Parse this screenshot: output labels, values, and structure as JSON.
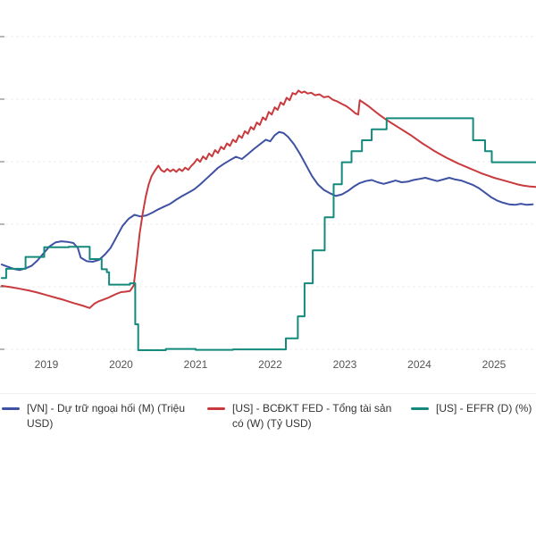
{
  "page": {
    "background": "#ffffff"
  },
  "chart_data": {
    "type": "line",
    "title": "",
    "xlabel": "",
    "ylabel": "",
    "grid": true,
    "legend_position": "bottom",
    "x_axis": {
      "tick_labels": [
        "2019",
        "2020",
        "2021",
        "2022",
        "2023",
        "2024",
        "2025"
      ],
      "tick_values": [
        2019,
        2020,
        2021,
        2022,
        2023,
        2024,
        2025
      ],
      "range": [
        2018.4,
        2025.56
      ]
    },
    "y_axis": {
      "labels_visible": false
    },
    "series": [
      {
        "name": "[VN] - Dự trữ ngoại hối (M) (Triệu USD)",
        "unit": "Triệu USD",
        "color": "#3e51a3",
        "step": false,
        "axis_range": [
          30000,
          140000
        ],
        "points": [
          [
            2018.4,
            62000
          ],
          [
            2018.48,
            61200
          ],
          [
            2018.56,
            60400
          ],
          [
            2018.64,
            60000
          ],
          [
            2018.72,
            60600
          ],
          [
            2018.8,
            61500
          ],
          [
            2018.88,
            63500
          ],
          [
            2018.96,
            66000
          ],
          [
            2019.04,
            68500
          ],
          [
            2019.12,
            70000
          ],
          [
            2019.2,
            70400
          ],
          [
            2019.28,
            70200
          ],
          [
            2019.36,
            69800
          ],
          [
            2019.42,
            68000
          ],
          [
            2019.46,
            64500
          ],
          [
            2019.54,
            63200
          ],
          [
            2019.62,
            63000
          ],
          [
            2019.7,
            63600
          ],
          [
            2019.78,
            65500
          ],
          [
            2019.86,
            68000
          ],
          [
            2019.94,
            72000
          ],
          [
            2020.02,
            76000
          ],
          [
            2020.1,
            78500
          ],
          [
            2020.18,
            80000
          ],
          [
            2020.26,
            79400
          ],
          [
            2020.34,
            79800
          ],
          [
            2020.42,
            80800
          ],
          [
            2020.5,
            82000
          ],
          [
            2020.58,
            83000
          ],
          [
            2020.66,
            84000
          ],
          [
            2020.74,
            85500
          ],
          [
            2020.82,
            86800
          ],
          [
            2020.9,
            88000
          ],
          [
            2020.98,
            89200
          ],
          [
            2021.06,
            91000
          ],
          [
            2021.14,
            93000
          ],
          [
            2021.22,
            95000
          ],
          [
            2021.3,
            97000
          ],
          [
            2021.38,
            98500
          ],
          [
            2021.46,
            99800
          ],
          [
            2021.54,
            101000
          ],
          [
            2021.62,
            100200
          ],
          [
            2021.7,
            102000
          ],
          [
            2021.78,
            103800
          ],
          [
            2021.86,
            105500
          ],
          [
            2021.94,
            107200
          ],
          [
            2022.0,
            106600
          ],
          [
            2022.06,
            108800
          ],
          [
            2022.12,
            110000
          ],
          [
            2022.18,
            109600
          ],
          [
            2022.24,
            108200
          ],
          [
            2022.32,
            105500
          ],
          [
            2022.4,
            102000
          ],
          [
            2022.48,
            98000
          ],
          [
            2022.56,
            94000
          ],
          [
            2022.64,
            91000
          ],
          [
            2022.72,
            89000
          ],
          [
            2022.8,
            87800
          ],
          [
            2022.88,
            86800
          ],
          [
            2022.96,
            87400
          ],
          [
            2023.04,
            88600
          ],
          [
            2023.12,
            90200
          ],
          [
            2023.2,
            91500
          ],
          [
            2023.28,
            92200
          ],
          [
            2023.36,
            92600
          ],
          [
            2023.44,
            91800
          ],
          [
            2023.52,
            91200
          ],
          [
            2023.6,
            91800
          ],
          [
            2023.68,
            92400
          ],
          [
            2023.76,
            91800
          ],
          [
            2023.84,
            92000
          ],
          [
            2023.92,
            92600
          ],
          [
            2024.0,
            93000
          ],
          [
            2024.08,
            93400
          ],
          [
            2024.16,
            92800
          ],
          [
            2024.24,
            92200
          ],
          [
            2024.32,
            92800
          ],
          [
            2024.4,
            93400
          ],
          [
            2024.48,
            92800
          ],
          [
            2024.56,
            92400
          ],
          [
            2024.64,
            91600
          ],
          [
            2024.72,
            90800
          ],
          [
            2024.8,
            89600
          ],
          [
            2024.88,
            88000
          ],
          [
            2024.96,
            86400
          ],
          [
            2025.04,
            85200
          ],
          [
            2025.12,
            84400
          ],
          [
            2025.2,
            83800
          ],
          [
            2025.28,
            83600
          ],
          [
            2025.36,
            84000
          ],
          [
            2025.44,
            83600
          ],
          [
            2025.52,
            83800
          ]
        ]
      },
      {
        "name": "[US] - BCĐKT FED - Tổng tài sản có (W) (Tỷ USD)",
        "unit": "Tỷ USD",
        "color": "#c93a3e",
        "step": false,
        "axis_range": [
          2700,
          9950
        ],
        "points": [
          [
            2018.4,
            4300
          ],
          [
            2018.52,
            4270
          ],
          [
            2018.64,
            4230
          ],
          [
            2018.76,
            4190
          ],
          [
            2018.88,
            4140
          ],
          [
            2019.0,
            4080
          ],
          [
            2019.12,
            4020
          ],
          [
            2019.24,
            3960
          ],
          [
            2019.36,
            3890
          ],
          [
            2019.48,
            3830
          ],
          [
            2019.58,
            3770
          ],
          [
            2019.64,
            3870
          ],
          [
            2019.7,
            3930
          ],
          [
            2019.76,
            3970
          ],
          [
            2019.82,
            4010
          ],
          [
            2019.88,
            4060
          ],
          [
            2019.94,
            4110
          ],
          [
            2020.0,
            4150
          ],
          [
            2020.06,
            4160
          ],
          [
            2020.12,
            4175
          ],
          [
            2020.17,
            4310
          ],
          [
            2020.21,
            4900
          ],
          [
            2020.25,
            5560
          ],
          [
            2020.29,
            6020
          ],
          [
            2020.33,
            6420
          ],
          [
            2020.37,
            6720
          ],
          [
            2020.41,
            6920
          ],
          [
            2020.45,
            7040
          ],
          [
            2020.5,
            7170
          ],
          [
            2020.54,
            7060
          ],
          [
            2020.58,
            7020
          ],
          [
            2020.62,
            7090
          ],
          [
            2020.66,
            7030
          ],
          [
            2020.7,
            7080
          ],
          [
            2020.74,
            7020
          ],
          [
            2020.78,
            7090
          ],
          [
            2020.82,
            7040
          ],
          [
            2020.86,
            7120
          ],
          [
            2020.9,
            7070
          ],
          [
            2020.94,
            7160
          ],
          [
            2020.98,
            7230
          ],
          [
            2021.02,
            7330
          ],
          [
            2021.06,
            7260
          ],
          [
            2021.1,
            7390
          ],
          [
            2021.14,
            7320
          ],
          [
            2021.18,
            7460
          ],
          [
            2021.22,
            7390
          ],
          [
            2021.26,
            7540
          ],
          [
            2021.3,
            7470
          ],
          [
            2021.34,
            7620
          ],
          [
            2021.38,
            7560
          ],
          [
            2021.42,
            7700
          ],
          [
            2021.46,
            7640
          ],
          [
            2021.5,
            7790
          ],
          [
            2021.54,
            7730
          ],
          [
            2021.58,
            7890
          ],
          [
            2021.62,
            7830
          ],
          [
            2021.66,
            7990
          ],
          [
            2021.7,
            7930
          ],
          [
            2021.74,
            8090
          ],
          [
            2021.78,
            8030
          ],
          [
            2021.82,
            8200
          ],
          [
            2021.86,
            8140
          ],
          [
            2021.9,
            8320
          ],
          [
            2021.94,
            8260
          ],
          [
            2021.98,
            8450
          ],
          [
            2022.02,
            8390
          ],
          [
            2022.06,
            8560
          ],
          [
            2022.1,
            8500
          ],
          [
            2022.14,
            8680
          ],
          [
            2022.18,
            8620
          ],
          [
            2022.22,
            8790
          ],
          [
            2022.26,
            8730
          ],
          [
            2022.3,
            8900
          ],
          [
            2022.34,
            8870
          ],
          [
            2022.38,
            8960
          ],
          [
            2022.42,
            8910
          ],
          [
            2022.46,
            8940
          ],
          [
            2022.5,
            8890
          ],
          [
            2022.55,
            8910
          ],
          [
            2022.6,
            8850
          ],
          [
            2022.66,
            8870
          ],
          [
            2022.72,
            8800
          ],
          [
            2022.78,
            8820
          ],
          [
            2022.84,
            8740
          ],
          [
            2022.9,
            8700
          ],
          [
            2022.96,
            8640
          ],
          [
            2023.02,
            8590
          ],
          [
            2023.08,
            8510
          ],
          [
            2023.14,
            8420
          ],
          [
            2023.18,
            8390
          ],
          [
            2023.2,
            8730
          ],
          [
            2023.26,
            8660
          ],
          [
            2023.33,
            8570
          ],
          [
            2023.4,
            8470
          ],
          [
            2023.48,
            8360
          ],
          [
            2023.56,
            8260
          ],
          [
            2023.64,
            8170
          ],
          [
            2023.72,
            8080
          ],
          [
            2023.8,
            7990
          ],
          [
            2023.88,
            7900
          ],
          [
            2023.96,
            7800
          ],
          [
            2024.04,
            7700
          ],
          [
            2024.12,
            7610
          ],
          [
            2024.2,
            7520
          ],
          [
            2024.28,
            7440
          ],
          [
            2024.36,
            7360
          ],
          [
            2024.44,
            7290
          ],
          [
            2024.52,
            7220
          ],
          [
            2024.6,
            7160
          ],
          [
            2024.68,
            7100
          ],
          [
            2024.76,
            7040
          ],
          [
            2024.84,
            6980
          ],
          [
            2024.92,
            6930
          ],
          [
            2025.0,
            6880
          ],
          [
            2025.08,
            6840
          ],
          [
            2025.16,
            6800
          ],
          [
            2025.24,
            6760
          ],
          [
            2025.32,
            6720
          ],
          [
            2025.4,
            6690
          ],
          [
            2025.48,
            6670
          ],
          [
            2025.56,
            6660
          ]
        ]
      },
      {
        "name": "[US] - EFFR (D) (%)",
        "unit": "%",
        "color": "#148a7d",
        "step": true,
        "axis_range": [
          0,
          6.9
        ],
        "points": [
          [
            2018.4,
            1.7
          ],
          [
            2018.46,
            1.91
          ],
          [
            2018.72,
            2.18
          ],
          [
            2018.97,
            2.4
          ],
          [
            2019.3,
            2.41
          ],
          [
            2019.58,
            2.13
          ],
          [
            2019.74,
            1.9
          ],
          [
            2019.81,
            1.83
          ],
          [
            2019.84,
            1.55
          ],
          [
            2020.12,
            1.58
          ],
          [
            2020.19,
            0.65
          ],
          [
            2020.23,
            0.06
          ],
          [
            2020.6,
            0.09
          ],
          [
            2021.0,
            0.07
          ],
          [
            2021.5,
            0.08
          ],
          [
            2022.0,
            0.08
          ],
          [
            2022.21,
            0.33
          ],
          [
            2022.37,
            0.83
          ],
          [
            2022.46,
            1.58
          ],
          [
            2022.57,
            2.33
          ],
          [
            2022.73,
            3.08
          ],
          [
            2022.85,
            3.83
          ],
          [
            2022.96,
            4.33
          ],
          [
            2023.09,
            4.58
          ],
          [
            2023.23,
            4.83
          ],
          [
            2023.36,
            5.08
          ],
          [
            2023.56,
            5.33
          ],
          [
            2024.63,
            5.33
          ],
          [
            2024.72,
            4.83
          ],
          [
            2024.88,
            4.58
          ],
          [
            2024.97,
            4.33
          ],
          [
            2025.56,
            4.33
          ]
        ]
      }
    ]
  }
}
